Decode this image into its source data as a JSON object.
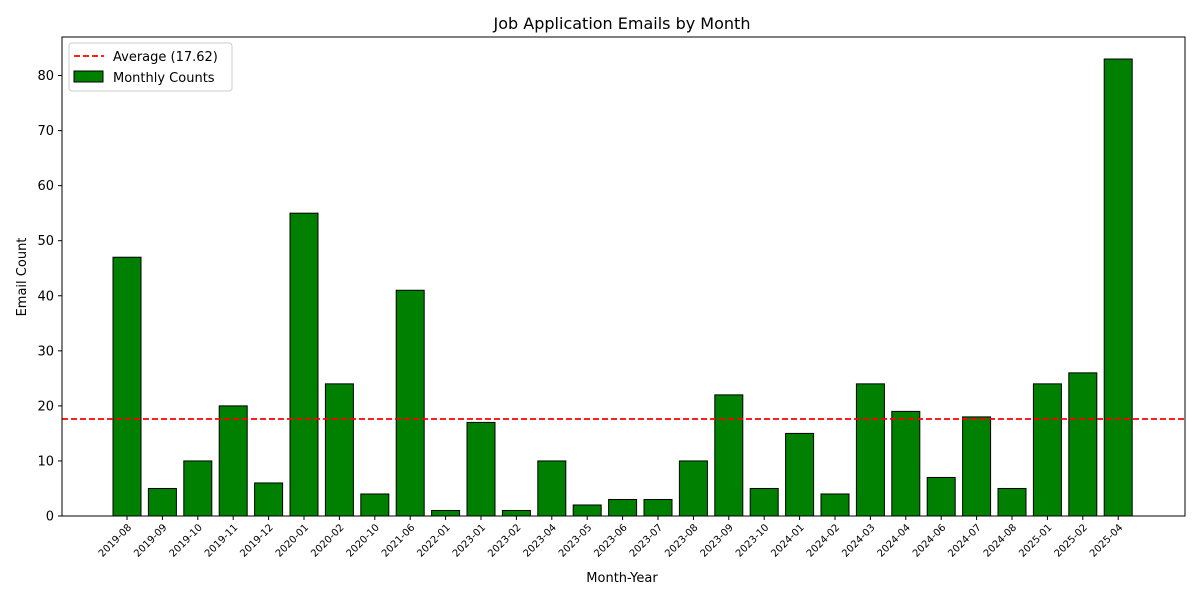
{
  "chart_data": {
    "type": "bar",
    "title": "Job Application Emails by Month",
    "xlabel": "Month-Year",
    "ylabel": "Email Count",
    "ylim": [
      0,
      87
    ],
    "yticks": [
      0,
      10,
      20,
      30,
      40,
      50,
      60,
      70,
      80
    ],
    "categories": [
      "2019-08",
      "2019-09",
      "2019-10",
      "2019-11",
      "2019-12",
      "2020-01",
      "2020-02",
      "2020-10",
      "2021-06",
      "2022-01",
      "2023-01",
      "2023-02",
      "2023-04",
      "2023-05",
      "2023-06",
      "2023-07",
      "2023-08",
      "2023-09",
      "2023-10",
      "2024-01",
      "2024-02",
      "2024-03",
      "2024-04",
      "2024-06",
      "2024-07",
      "2024-08",
      "2025-01",
      "2025-02",
      "2025-04"
    ],
    "series": [
      {
        "name": "Monthly Counts",
        "color": "#008000",
        "edgecolor": "#000000",
        "values": [
          47,
          5,
          10,
          20,
          6,
          55,
          24,
          4,
          41,
          1,
          17,
          1,
          10,
          2,
          3,
          3,
          10,
          22,
          5,
          15,
          4,
          24,
          19,
          7,
          18,
          5,
          24,
          26,
          83
        ]
      }
    ],
    "reference_line": {
      "label": "Average (17.62)",
      "value": 17.62,
      "color": "#ff0000",
      "style": "dashed"
    },
    "legend_position": "top-left",
    "grid": false
  }
}
